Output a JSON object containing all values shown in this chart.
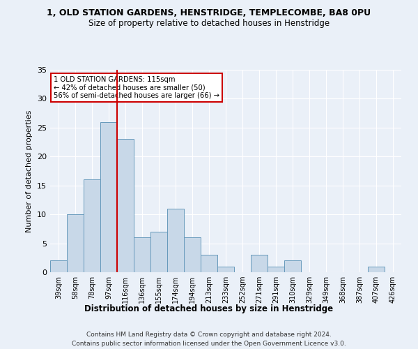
{
  "title_line1": "1, OLD STATION GARDENS, HENSTRIDGE, TEMPLECOMBE, BA8 0PU",
  "title_line2": "Size of property relative to detached houses in Henstridge",
  "xlabel": "Distribution of detached houses by size in Henstridge",
  "ylabel": "Number of detached properties",
  "bar_labels": [
    "39sqm",
    "58sqm",
    "78sqm",
    "97sqm",
    "116sqm",
    "136sqm",
    "155sqm",
    "174sqm",
    "194sqm",
    "213sqm",
    "233sqm",
    "252sqm",
    "271sqm",
    "291sqm",
    "310sqm",
    "329sqm",
    "349sqm",
    "368sqm",
    "387sqm",
    "407sqm",
    "426sqm"
  ],
  "bar_values": [
    2,
    10,
    16,
    26,
    23,
    6,
    7,
    11,
    6,
    3,
    1,
    0,
    3,
    1,
    2,
    0,
    0,
    0,
    0,
    1,
    0
  ],
  "bar_color": "#c8d8e8",
  "bar_edgecolor": "#6699bb",
  "annotation_text": "1 OLD STATION GARDENS: 115sqm\n← 42% of detached houses are smaller (50)\n56% of semi-detached houses are larger (66) →",
  "annotation_box_color": "#ffffff",
  "annotation_box_edgecolor": "#cc0000",
  "redline_color": "#cc0000",
  "ylim": [
    0,
    35
  ],
  "yticks": [
    0,
    5,
    10,
    15,
    20,
    25,
    30,
    35
  ],
  "background_color": "#eaf0f8",
  "grid_color": "#ffffff",
  "footer_line1": "Contains HM Land Registry data © Crown copyright and database right 2024.",
  "footer_line2": "Contains public sector information licensed under the Open Government Licence v3.0."
}
